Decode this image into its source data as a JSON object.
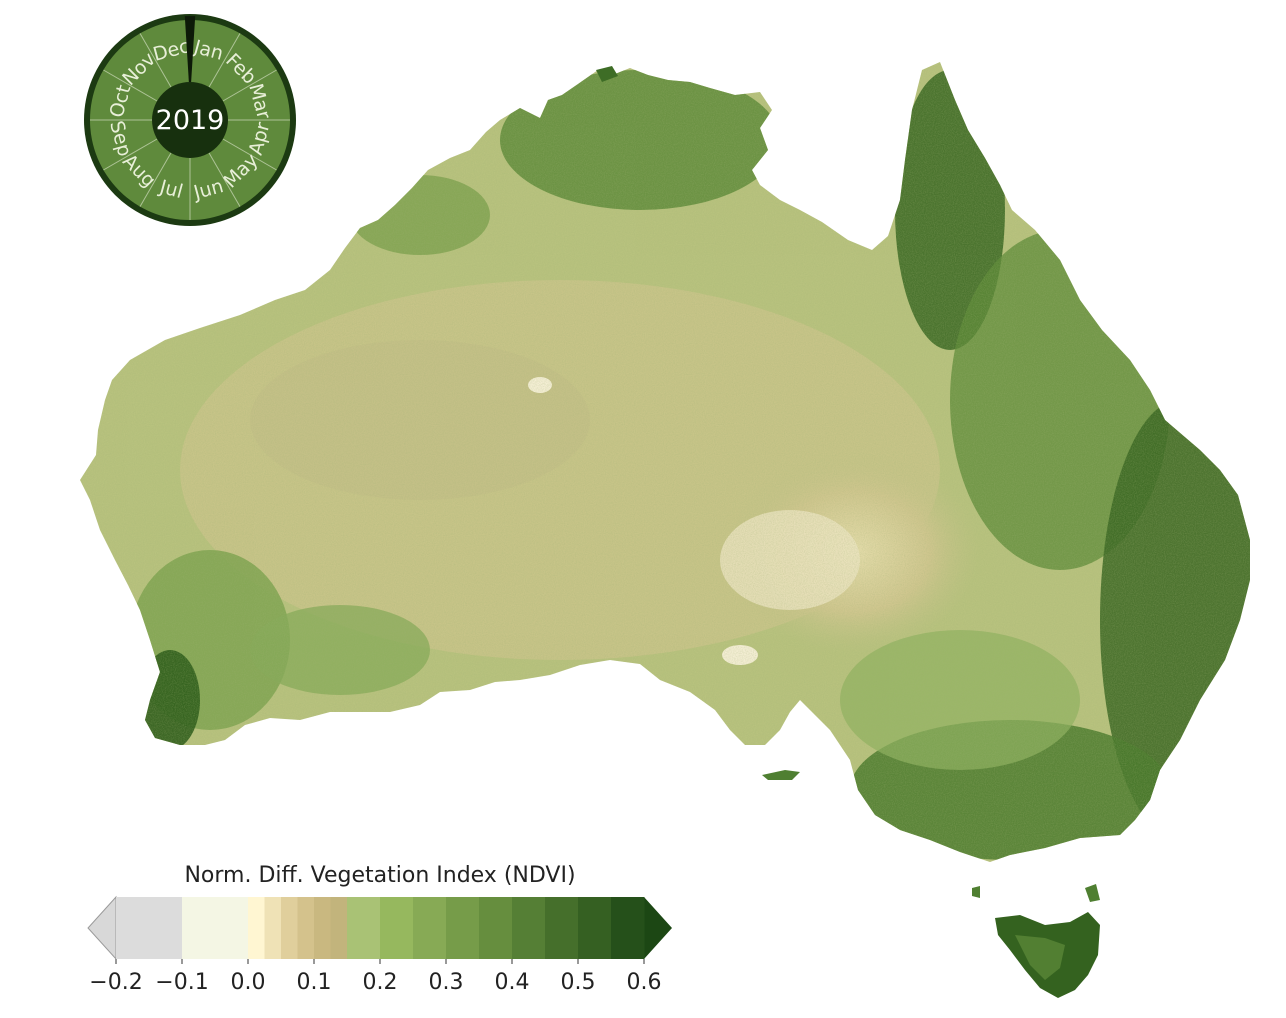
{
  "map": {
    "year": "2019",
    "months": [
      "Jan",
      "Feb",
      "Mar",
      "Apr",
      "May",
      "Jun",
      "Jul",
      "Aug",
      "Sep",
      "Oct",
      "Nov",
      "Dec"
    ],
    "current_month_fraction": 0.0,
    "calendar_colors": {
      "ring": "#1c3a12",
      "segment": "#5f8a3c",
      "center": "#17300e",
      "divider": "#cfdcbc"
    }
  },
  "colorbar": {
    "title": "Norm. Diff. Vegetation Index (NDVI)",
    "tick_labels": [
      "−0.2",
      "−0.1",
      "0.0",
      "0.1",
      "0.2",
      "0.3",
      "0.4",
      "0.5",
      "0.6"
    ],
    "tick_values": [
      -0.2,
      -0.1,
      0.0,
      0.1,
      0.2,
      0.3,
      0.4,
      0.5,
      0.6
    ],
    "range": [
      -0.2,
      0.6
    ],
    "extend": "both",
    "bins": [
      {
        "from": -0.2,
        "to": -0.1,
        "color": "#dcdcdc"
      },
      {
        "from": -0.1,
        "to": 0.0,
        "color": "#f4f6e4"
      },
      {
        "from": 0.0,
        "to": 0.025,
        "color": "#fff6d2"
      },
      {
        "from": 0.025,
        "to": 0.05,
        "color": "#efe2b6"
      },
      {
        "from": 0.05,
        "to": 0.075,
        "color": "#e0cf9c"
      },
      {
        "from": 0.075,
        "to": 0.1,
        "color": "#d4c28c"
      },
      {
        "from": 0.1,
        "to": 0.125,
        "color": "#c9b880"
      },
      {
        "from": 0.125,
        "to": 0.15,
        "color": "#c2b47c"
      },
      {
        "from": 0.15,
        "to": 0.2,
        "color": "#a9c275"
      },
      {
        "from": 0.2,
        "to": 0.25,
        "color": "#96b85e"
      },
      {
        "from": 0.25,
        "to": 0.3,
        "color": "#87aa55"
      },
      {
        "from": 0.3,
        "to": 0.35,
        "color": "#769c49"
      },
      {
        "from": 0.35,
        "to": 0.4,
        "color": "#668e3e"
      },
      {
        "from": 0.4,
        "to": 0.45,
        "color": "#557f35"
      },
      {
        "from": 0.45,
        "to": 0.5,
        "color": "#456f2b"
      },
      {
        "from": 0.5,
        "to": 0.55,
        "color": "#356022"
      },
      {
        "from": 0.55,
        "to": 0.6,
        "color": "#25501a"
      }
    ],
    "under_color": "#d8d8d8",
    "over_color": "#1c4714"
  }
}
